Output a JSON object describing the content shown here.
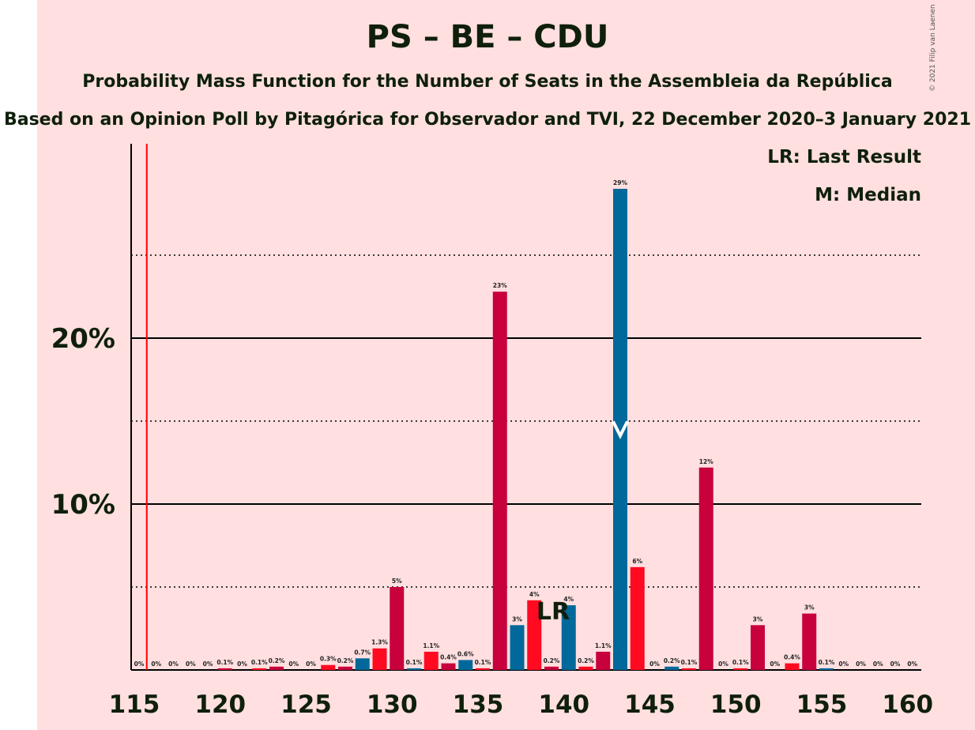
{
  "header": {
    "title": "PS – BE – CDU",
    "subtitle": "Probability Mass Function for the Number of Seats in the Assembleia da República",
    "subtitle2": "Based on an Opinion Poll by Pitagórica for Observador and TVI, 22 December 2020–3 January 2021",
    "copyright": "© 2021 Filip van Laenen"
  },
  "legend": {
    "last_result": "LR: Last Result",
    "median": "M: Median"
  },
  "colors": {
    "background": "#ffdfe0",
    "red": "#ff0a21",
    "crimson": "#c8003b",
    "blue": "#00689a",
    "last_result_line": "#ff0000",
    "text": "#0f1f0b"
  },
  "chart_data": {
    "type": "bar",
    "title": "PS – BE – CDU",
    "xlabel": "",
    "ylabel": "",
    "xlim": [
      115,
      160
    ],
    "ylim": [
      0,
      32
    ],
    "y_ticks": [
      10,
      20
    ],
    "y_tick_labels": [
      "10%",
      "20%"
    ],
    "x_ticks": [
      115,
      120,
      125,
      130,
      135,
      140,
      145,
      150,
      155,
      160
    ],
    "grid": "solid at 10% steps, dotted at 5% steps",
    "last_result": 116,
    "median": 143,
    "markers": {
      "last_result": "LR",
      "median": "M"
    },
    "bars": [
      {
        "seats": 115,
        "value": 0,
        "label": "0%",
        "color": "red"
      },
      {
        "seats": 116,
        "value": 0,
        "label": "0%",
        "color": "red"
      },
      {
        "seats": 117,
        "value": 0,
        "label": "0%",
        "color": "crimson"
      },
      {
        "seats": 118,
        "value": 0,
        "label": "0%",
        "color": "blue"
      },
      {
        "seats": 119,
        "value": 0,
        "label": "0%",
        "color": "red"
      },
      {
        "seats": 120,
        "value": 0.1,
        "label": "0.1%",
        "color": "crimson"
      },
      {
        "seats": 121,
        "value": 0,
        "label": "0%",
        "color": "blue"
      },
      {
        "seats": 122,
        "value": 0.1,
        "label": "0.1%",
        "color": "red"
      },
      {
        "seats": 123,
        "value": 0.2,
        "label": "0.2%",
        "color": "crimson"
      },
      {
        "seats": 124,
        "value": 0,
        "label": "0%",
        "color": "blue"
      },
      {
        "seats": 125,
        "value": 0,
        "label": "0%",
        "color": "red"
      },
      {
        "seats": 126,
        "value": 0.3,
        "label": "0.3%",
        "color": "red"
      },
      {
        "seats": 127,
        "value": 0.2,
        "label": "0.2%",
        "color": "crimson"
      },
      {
        "seats": 128,
        "value": 0.7,
        "label": "0.7%",
        "color": "blue"
      },
      {
        "seats": 129,
        "value": 1.3,
        "label": "1.3%",
        "color": "red"
      },
      {
        "seats": 130,
        "value": 5.0,
        "label": "5%",
        "color": "crimson"
      },
      {
        "seats": 131,
        "value": 0.1,
        "label": "0.1%",
        "color": "blue"
      },
      {
        "seats": 132,
        "value": 1.1,
        "label": "1.1%",
        "color": "red"
      },
      {
        "seats": 133,
        "value": 0.4,
        "label": "0.4%",
        "color": "crimson"
      },
      {
        "seats": 134,
        "value": 0.6,
        "label": "0.6%",
        "color": "blue"
      },
      {
        "seats": 135,
        "value": 0.1,
        "label": "0.1%",
        "color": "red"
      },
      {
        "seats": 136,
        "value": 22.8,
        "label": "23%",
        "color": "crimson"
      },
      {
        "seats": 137,
        "value": 2.7,
        "label": "3%",
        "color": "blue"
      },
      {
        "seats": 138,
        "value": 4.2,
        "label": "4%",
        "color": "red"
      },
      {
        "seats": 139,
        "value": 0.2,
        "label": "0.2%",
        "color": "crimson"
      },
      {
        "seats": 140,
        "value": 3.9,
        "label": "4%",
        "color": "blue"
      },
      {
        "seats": 141,
        "value": 0.2,
        "label": "0.2%",
        "color": "red"
      },
      {
        "seats": 142,
        "value": 1.1,
        "label": "1.1%",
        "color": "crimson"
      },
      {
        "seats": 143,
        "value": 29.0,
        "label": "29%",
        "color": "blue"
      },
      {
        "seats": 144,
        "value": 6.2,
        "label": "6%",
        "color": "red"
      },
      {
        "seats": 145,
        "value": 0,
        "label": "0%",
        "color": "crimson"
      },
      {
        "seats": 146,
        "value": 0.2,
        "label": "0.2%",
        "color": "blue"
      },
      {
        "seats": 147,
        "value": 0.1,
        "label": "0.1%",
        "color": "red"
      },
      {
        "seats": 148,
        "value": 12.2,
        "label": "12%",
        "color": "crimson"
      },
      {
        "seats": 149,
        "value": 0,
        "label": "0%",
        "color": "blue"
      },
      {
        "seats": 150,
        "value": 0.1,
        "label": "0.1%",
        "color": "red"
      },
      {
        "seats": 151,
        "value": 2.7,
        "label": "3%",
        "color": "crimson"
      },
      {
        "seats": 152,
        "value": 0,
        "label": "0%",
        "color": "blue"
      },
      {
        "seats": 153,
        "value": 0.4,
        "label": "0.4%",
        "color": "red"
      },
      {
        "seats": 154,
        "value": 3.4,
        "label": "3%",
        "color": "crimson"
      },
      {
        "seats": 155,
        "value": 0.1,
        "label": "0.1%",
        "color": "blue"
      },
      {
        "seats": 156,
        "value": 0,
        "label": "0%",
        "color": "red"
      },
      {
        "seats": 157,
        "value": 0,
        "label": "0%",
        "color": "crimson"
      },
      {
        "seats": 158,
        "value": 0,
        "label": "0%",
        "color": "blue"
      },
      {
        "seats": 159,
        "value": 0,
        "label": "0%",
        "color": "red"
      },
      {
        "seats": 160,
        "value": 0,
        "label": "0%",
        "color": "crimson"
      }
    ]
  }
}
